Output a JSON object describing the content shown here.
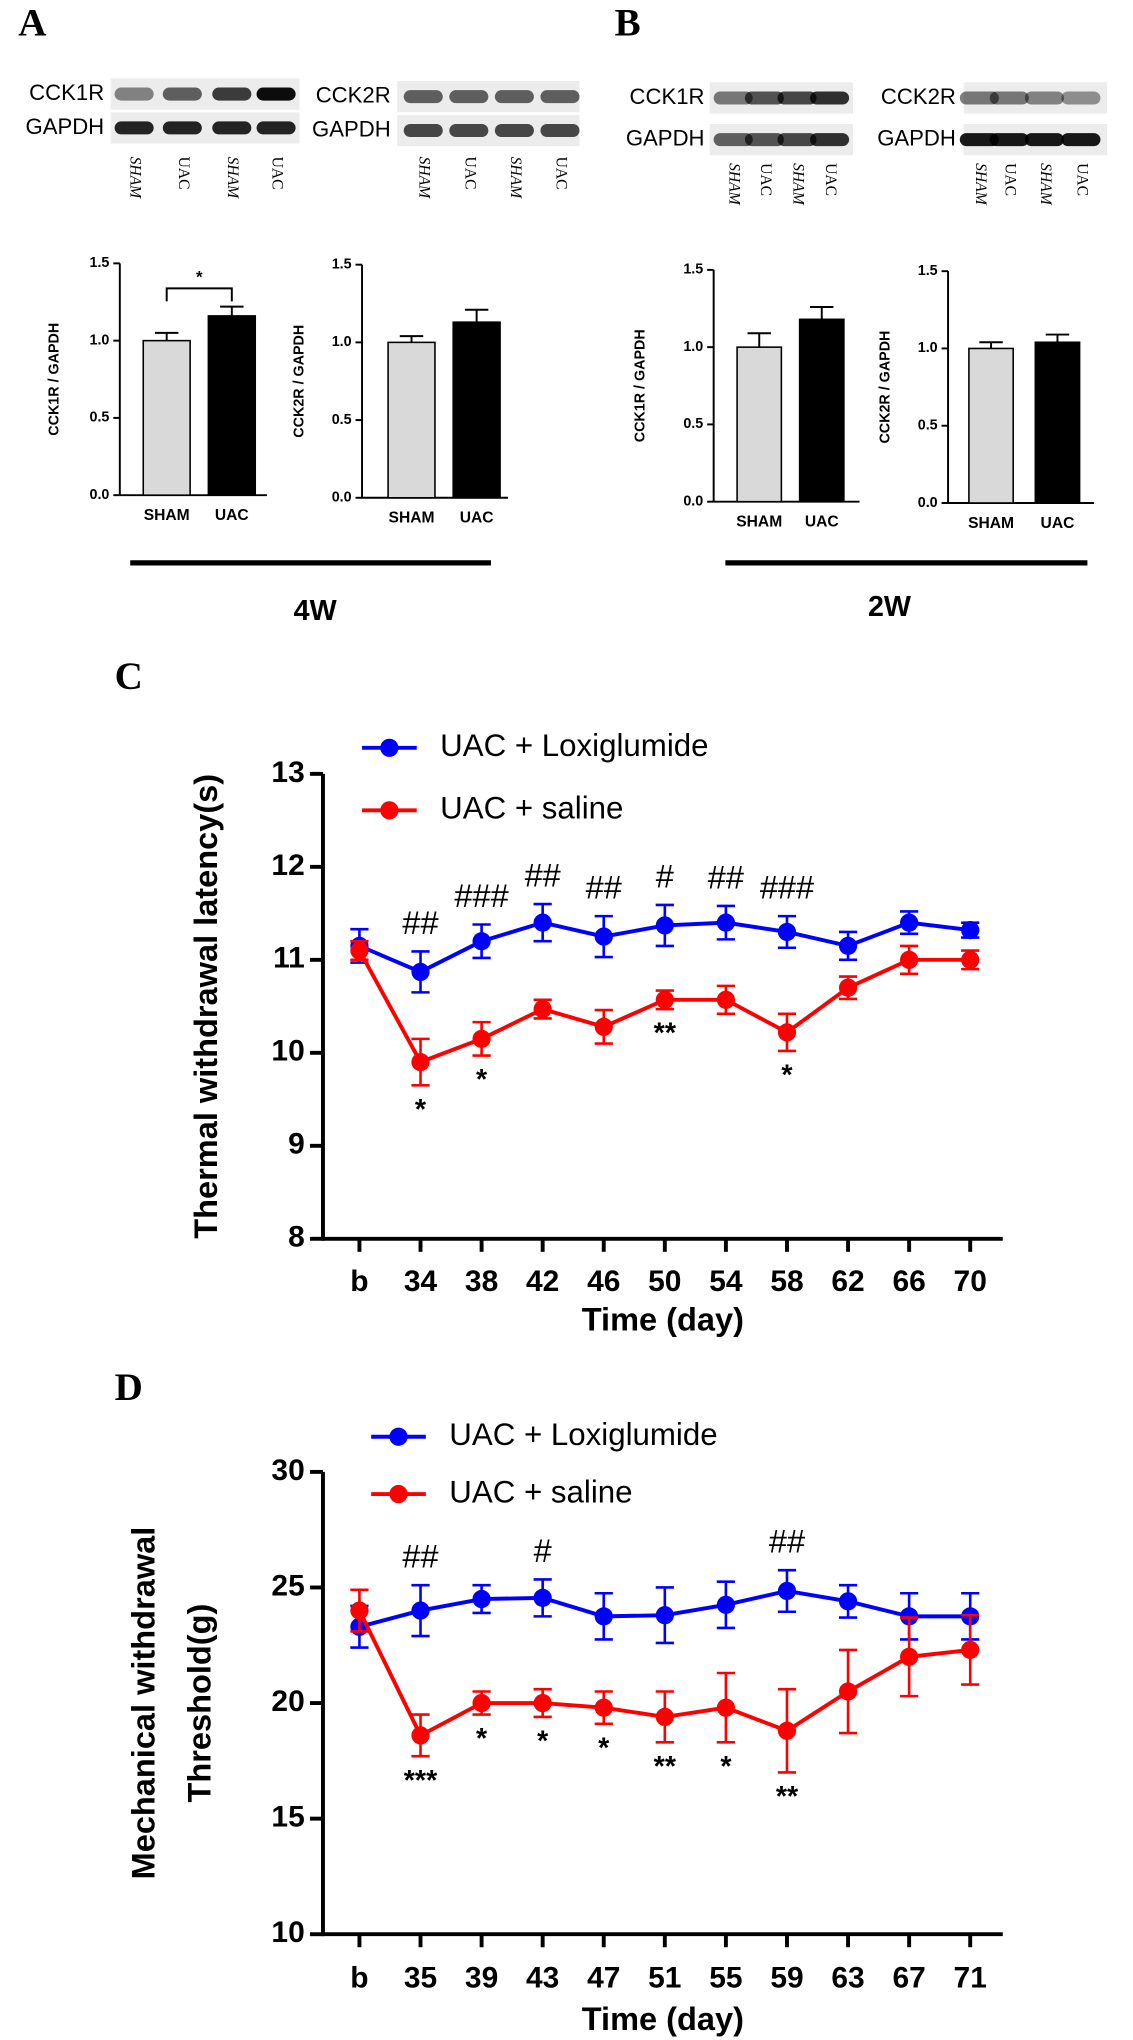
{
  "panels": [
    "A",
    "B",
    "C",
    "D"
  ],
  "durations": [
    "4W",
    "2W"
  ],
  "blots": [
    {
      "rows": [
        "CCK1R",
        "GAPDH"
      ],
      "lanes": [
        "SHAM",
        "UAC",
        "SHAM",
        "UAC"
      ]
    },
    {
      "rows": [
        "CCK2R",
        "GAPDH"
      ],
      "lanes": [
        "SHAM",
        "UAC",
        "SHAM",
        "UAC"
      ]
    },
    {
      "rows": [
        "CCK1R",
        "GAPDH"
      ],
      "lanes": [
        "SHAM",
        "UAC",
        "SHAM",
        "UAC"
      ]
    },
    {
      "rows": [
        "CCK2R",
        "GAPDH"
      ],
      "lanes": [
        "SHAM",
        "UAC",
        "SHAM",
        "UAC"
      ]
    }
  ],
  "chart_data": [
    {
      "type": "bar",
      "ylabel": "CCK1R / GAPDH",
      "categories": [
        "SHAM",
        "UAC"
      ],
      "values": [
        1.0,
        1.16
      ],
      "errors": [
        0.05,
        0.06
      ],
      "colors": [
        "#d9d9d9",
        "#000000"
      ],
      "ylim": [
        0,
        1.5
      ],
      "yticks": [
        {
          "value": 0,
          "label": "0.0"
        },
        0.5,
        {
          "value": 1,
          "label": "1.0"
        },
        1.5
      ],
      "significance": "*"
    },
    {
      "type": "bar",
      "ylabel": "CCK2R / GAPDH",
      "categories": [
        "SHAM",
        "UAC"
      ],
      "values": [
        1.0,
        1.13
      ],
      "errors": [
        0.04,
        0.08
      ],
      "colors": [
        "#d9d9d9",
        "#000000"
      ],
      "ylim": [
        0,
        1.5
      ],
      "yticks": [
        {
          "value": 0,
          "label": "0.0"
        },
        0.5,
        {
          "value": 1,
          "label": "1.0"
        },
        1.5
      ]
    },
    {
      "type": "bar",
      "ylabel": "CCK1R / GAPDH",
      "categories": [
        "SHAM",
        "UAC"
      ],
      "values": [
        1.0,
        1.18
      ],
      "errors": [
        0.09,
        0.08
      ],
      "colors": [
        "#d9d9d9",
        "#000000"
      ],
      "ylim": [
        0,
        1.5
      ],
      "yticks": [
        {
          "value": 0,
          "label": "0.0"
        },
        0.5,
        {
          "value": 1,
          "label": "1.0"
        },
        1.5
      ]
    },
    {
      "type": "bar",
      "ylabel": "CCK2R / GAPDH",
      "categories": [
        "SHAM",
        "UAC"
      ],
      "values": [
        1.0,
        1.04
      ],
      "errors": [
        0.04,
        0.05
      ],
      "colors": [
        "#d9d9d9",
        "#000000"
      ],
      "ylim": [
        0,
        1.5
      ],
      "yticks": [
        {
          "value": 0,
          "label": "0.0"
        },
        0.5,
        {
          "value": 1,
          "label": "1.0"
        },
        1.5
      ]
    },
    {
      "type": "line",
      "ylabel": [
        "Thermal withdrawal latency(s)"
      ],
      "xlabel": "Time (day)",
      "categories": [
        "b",
        "34",
        "38",
        "42",
        "46",
        "50",
        "54",
        "58",
        "62",
        "66",
        "70"
      ],
      "ylim": [
        8,
        13
      ],
      "yticks": [
        8,
        9,
        10,
        11,
        12,
        13
      ],
      "series": [
        {
          "name": "UAC + Loxiglumide",
          "color": "#0000ff",
          "values": [
            11.15,
            10.87,
            11.2,
            11.4,
            11.25,
            11.37,
            11.4,
            11.3,
            11.15,
            11.4,
            11.32
          ],
          "errors": [
            0.18,
            0.22,
            0.18,
            0.2,
            0.22,
            0.22,
            0.18,
            0.17,
            0.15,
            0.12,
            0.08
          ],
          "significance": [
            null,
            "##",
            "###",
            "##",
            "##",
            "#",
            "##",
            "###",
            null,
            null,
            null
          ]
        },
        {
          "name": "UAC + saline",
          "color": "#ff0000",
          "values": [
            11.1,
            9.9,
            10.15,
            10.47,
            10.28,
            10.57,
            10.57,
            10.22,
            10.7,
            11.0,
            11.0
          ],
          "errors": [
            0.1,
            0.25,
            0.18,
            0.1,
            0.18,
            0.1,
            0.15,
            0.2,
            0.12,
            0.15,
            0.1
          ],
          "significance": [
            null,
            "*",
            "*",
            null,
            null,
            "**",
            null,
            "*",
            null,
            null,
            null
          ]
        }
      ]
    },
    {
      "type": "line",
      "ylabel": [
        "Mechanical withdrawal",
        "Threshold(g)"
      ],
      "xlabel": "Time (day)",
      "categories": [
        "b",
        "35",
        "39",
        "43",
        "47",
        "51",
        "55",
        "59",
        "63",
        "67",
        "71"
      ],
      "ylim": [
        10,
        30
      ],
      "yticks": [
        10,
        15,
        20,
        25,
        30
      ],
      "series": [
        {
          "name": "UAC + Loxiglumide",
          "color": "#0000ff",
          "values": [
            23.3,
            24.0,
            24.5,
            24.55,
            23.75,
            23.8,
            24.25,
            24.85,
            24.4,
            23.75,
            23.75
          ],
          "errors": [
            0.9,
            1.1,
            0.6,
            0.8,
            1.0,
            1.2,
            1.0,
            0.9,
            0.7,
            1.0,
            1.0
          ],
          "significance": [
            null,
            "##",
            null,
            "#",
            null,
            null,
            null,
            "##",
            null,
            null,
            null
          ]
        },
        {
          "name": "UAC + saline",
          "color": "#ff0000",
          "values": [
            24.0,
            18.6,
            20.0,
            20.0,
            19.8,
            19.4,
            19.8,
            18.8,
            20.5,
            22.0,
            22.3
          ],
          "errors": [
            0.9,
            0.9,
            0.5,
            0.6,
            0.7,
            1.1,
            1.5,
            1.8,
            1.8,
            1.7,
            1.5
          ],
          "significance": [
            null,
            "***",
            "*",
            "*",
            "*",
            "**",
            "*",
            "**",
            null,
            null,
            null
          ]
        }
      ]
    }
  ]
}
